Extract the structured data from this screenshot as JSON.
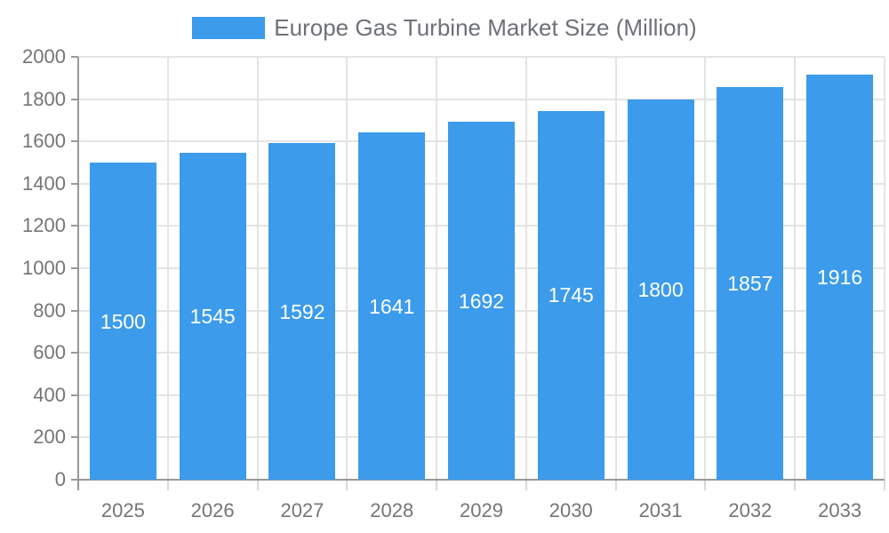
{
  "legend": {
    "label": "Europe Gas Turbine Market Size (Million)"
  },
  "colors": {
    "bar": "#3C9BEB",
    "axis_line": "#999999",
    "grid_line": "#E4E4E4",
    "x_tick": "#D9D9D9",
    "tick_label": "#757575",
    "legend_text": "#6E7079",
    "bar_label": "#FFFFFF",
    "background": "#FFFFFF"
  },
  "chart_data": {
    "type": "bar",
    "title": "Europe Gas Turbine Market Size (Million)",
    "categories": [
      "2025",
      "2026",
      "2027",
      "2028",
      "2029",
      "2030",
      "2031",
      "2032",
      "2033"
    ],
    "values": [
      1500,
      1545,
      1592,
      1641,
      1692,
      1745,
      1800,
      1857,
      1916
    ],
    "series_name": "Europe Gas Turbine Market Size (Million)",
    "xlabel": "",
    "ylabel": "",
    "ylim": [
      0,
      2000
    ],
    "ytick_step": 200,
    "ytick_labels": [
      "0",
      "200",
      "400",
      "600",
      "800",
      "1000",
      "1200",
      "1400",
      "1600",
      "1800",
      "2000"
    ],
    "grid": true,
    "legend_position": "top-center",
    "value_labels": "inside-middle"
  }
}
